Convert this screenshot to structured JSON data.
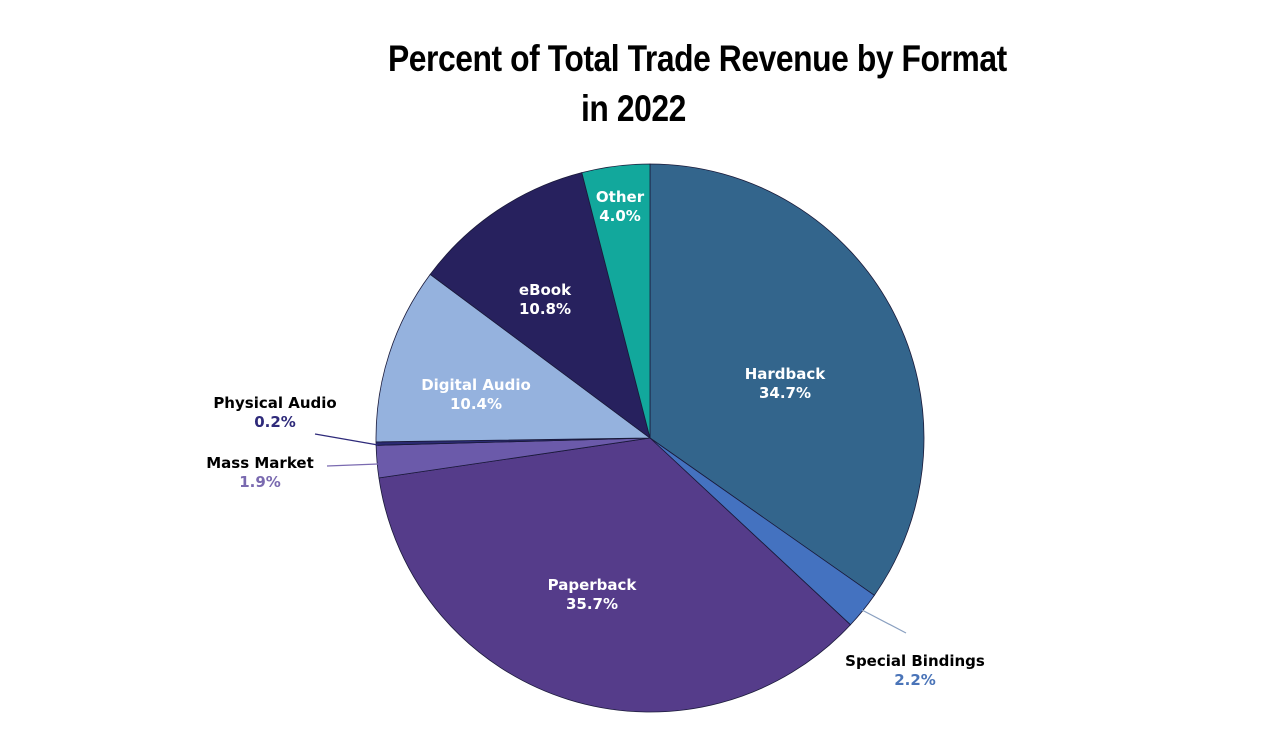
{
  "chart_data": {
    "type": "pie",
    "title_line1": "Percent of Total Trade Revenue by Format",
    "title_line2": "in 2022",
    "start": "12 o'clock, clockwise",
    "slices": [
      {
        "label": "Hardback",
        "value": 34.7,
        "text": "34.7%",
        "color": "#33658c"
      },
      {
        "label": "Special Bindings",
        "value": 2.2,
        "text": "2.2%",
        "color": "#4472c0"
      },
      {
        "label": "Paperback",
        "value": 35.7,
        "text": "35.7%",
        "color": "#553c8a"
      },
      {
        "label": "Mass Market",
        "value": 1.9,
        "text": "1.9%",
        "color": "#6b5aaa"
      },
      {
        "label": "Physical Audio",
        "value": 0.2,
        "text": "0.2%",
        "color": "#2a2a72"
      },
      {
        "label": "Digital Audio",
        "value": 10.4,
        "text": "10.4%",
        "color": "#95b2de"
      },
      {
        "label": "eBook",
        "value": 10.8,
        "text": "10.8%",
        "color": "#27215e"
      },
      {
        "label": "Other",
        "value": 4.0,
        "text": "4.0%",
        "color": "#12a89c"
      }
    ],
    "outside_label_colors": {
      "Physical Audio": "#2e2a7a",
      "Mass Market": "#7a6ab0",
      "Special Bindings": "#4a74b8"
    }
  }
}
